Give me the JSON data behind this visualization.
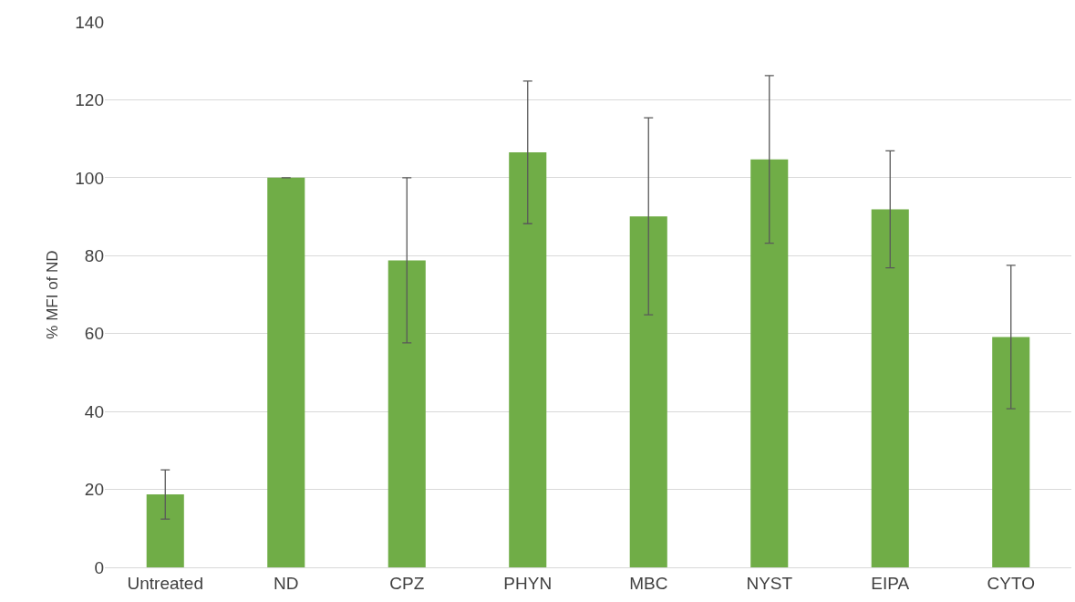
{
  "chart_data": {
    "type": "bar",
    "ylabel": "% MFI of ND",
    "categories": [
      "Untreated",
      "ND",
      "CPZ",
      "PHYN",
      "MBC",
      "NYST",
      "EIPA",
      "CYTO"
    ],
    "values": [
      18.7,
      100,
      78.8,
      106.5,
      90.1,
      104.7,
      91.9,
      59.1
    ],
    "errors": [
      6.3,
      0,
      21.2,
      18.3,
      25.3,
      21.5,
      15,
      18.4
    ],
    "color": "#70ad47",
    "ylim": [
      0,
      140
    ],
    "yticks": [
      0,
      20,
      40,
      60,
      80,
      100,
      120,
      140
    ],
    "grid": "y"
  }
}
